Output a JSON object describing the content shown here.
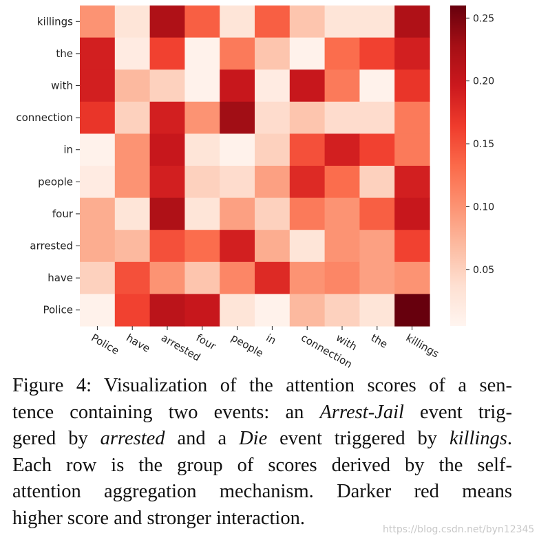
{
  "chart_data": {
    "type": "heatmap",
    "title": "",
    "xlabel": "",
    "ylabel": "",
    "x_categories": [
      "Police",
      "have",
      "arrested",
      "four",
      "people",
      "in",
      "connection",
      "with",
      "the",
      "killings"
    ],
    "y_categories": [
      "killings",
      "the",
      "with",
      "connection",
      "in",
      "people",
      "four",
      "arrested",
      "have",
      "Police"
    ],
    "values": [
      [
        0.1,
        0.03,
        0.22,
        0.14,
        0.03,
        0.14,
        0.06,
        0.03,
        0.03,
        0.22
      ],
      [
        0.19,
        0.02,
        0.16,
        0.01,
        0.12,
        0.06,
        0.01,
        0.13,
        0.16,
        0.19
      ],
      [
        0.19,
        0.07,
        0.05,
        0.01,
        0.2,
        0.02,
        0.2,
        0.12,
        0.01,
        0.17
      ],
      [
        0.17,
        0.05,
        0.19,
        0.1,
        0.23,
        0.04,
        0.06,
        0.04,
        0.04,
        0.12
      ],
      [
        0.01,
        0.1,
        0.2,
        0.03,
        0.01,
        0.05,
        0.15,
        0.19,
        0.16,
        0.12
      ],
      [
        0.02,
        0.1,
        0.19,
        0.05,
        0.04,
        0.09,
        0.18,
        0.13,
        0.05,
        0.19
      ],
      [
        0.08,
        0.03,
        0.22,
        0.03,
        0.09,
        0.05,
        0.12,
        0.1,
        0.14,
        0.2
      ],
      [
        0.08,
        0.07,
        0.15,
        0.13,
        0.19,
        0.08,
        0.03,
        0.1,
        0.09,
        0.16
      ],
      [
        0.05,
        0.15,
        0.1,
        0.06,
        0.11,
        0.18,
        0.1,
        0.11,
        0.09,
        0.1
      ],
      [
        0.01,
        0.16,
        0.21,
        0.2,
        0.03,
        0.01,
        0.07,
        0.05,
        0.03,
        0.26
      ]
    ],
    "colormap": "Reds",
    "vmin": 0.005,
    "vmax": 0.26,
    "colorbar_ticks": [
      0.05,
      0.1,
      0.15,
      0.2,
      0.25
    ],
    "colorbar_tick_labels": [
      "0.05",
      "0.10",
      "0.15",
      "0.20",
      "0.25"
    ],
    "grid": false,
    "colorbar_position": "right"
  },
  "caption": {
    "lines": [
      [
        {
          "t": "Figure 4: Visualization of the attention scores of a sen-",
          "i": false
        }
      ],
      [
        {
          "t": "tence containing two events: an ",
          "i": false
        },
        {
          "t": "Arrest-Jail",
          "i": true
        },
        {
          "t": " event trig-",
          "i": false
        }
      ],
      [
        {
          "t": "gered by ",
          "i": false
        },
        {
          "t": "arrested",
          "i": true
        },
        {
          "t": " and a ",
          "i": false
        },
        {
          "t": "Die",
          "i": true
        },
        {
          "t": " event triggered by ",
          "i": false
        },
        {
          "t": "killings",
          "i": true
        },
        {
          "t": ".",
          "i": false
        }
      ],
      [
        {
          "t": "Each row is the group of scores derived by the self-",
          "i": false
        }
      ],
      [
        {
          "t": "attention aggregation mechanism.  Darker red means",
          "i": false
        }
      ],
      [
        {
          "t": "higher score and stronger interaction.",
          "i": false
        }
      ]
    ]
  },
  "watermark": "https://blog.csdn.net/byn12345"
}
